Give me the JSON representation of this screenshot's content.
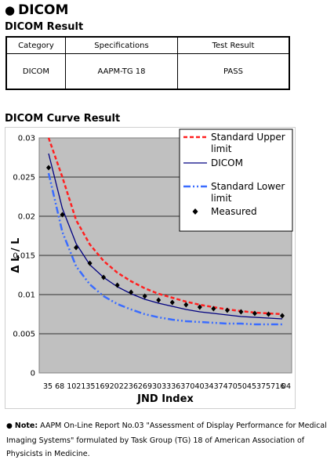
{
  "section": {
    "title": "DICOM"
  },
  "result": {
    "heading": "DICOM Result",
    "headers": [
      "Category",
      "Specifications",
      "Test Result"
    ],
    "rows": [
      [
        "DICOM",
        "AAPM-TG 18",
        "PASS"
      ]
    ]
  },
  "curve": {
    "heading": "DICOM Curve Result"
  },
  "chart_data": {
    "type": "line",
    "xlabel": "JND Index",
    "ylabel": "Δ L / L",
    "ylim": [
      0,
      0.03
    ],
    "y_ticks": [
      "0",
      "0.005",
      "0.01",
      "0.015",
      "0.02",
      "0.025",
      "0.03"
    ],
    "x_tick_text": "35  68 1021351692022362693033363704034374705045375716",
    "x_tick_last": "04",
    "grid": true,
    "legend_position": "top-right",
    "legend": [
      "Standard Upper limit",
      "DICOM",
      "Standard Lower limit",
      "Measured"
    ],
    "colors": {
      "upper": "#ff2020",
      "dicom": "#000080",
      "lower": "#3a6cff",
      "measured": "#000000",
      "plot_bg": "#c0c0c0"
    },
    "x": [
      35,
      68,
      102,
      135,
      169,
      202,
      236,
      269,
      303,
      336,
      370,
      403,
      437,
      470,
      504,
      537,
      571,
      604
    ],
    "series": [
      {
        "name": "Standard Upper limit",
        "values": [
          0.0315,
          0.025,
          0.0195,
          0.0164,
          0.0143,
          0.0128,
          0.0117,
          0.0108,
          0.0101,
          0.0096,
          0.0091,
          0.0087,
          0.0084,
          0.0081,
          0.0079,
          0.0077,
          0.0076,
          0.0075
        ]
      },
      {
        "name": "DICOM",
        "values": [
          0.028,
          0.021,
          0.0165,
          0.0138,
          0.0122,
          0.011,
          0.0101,
          0.0094,
          0.0089,
          0.0085,
          0.0081,
          0.0078,
          0.0076,
          0.0074,
          0.0072,
          0.0071,
          0.007,
          0.0069
        ]
      },
      {
        "name": "Standard Lower limit",
        "values": [
          0.0255,
          0.018,
          0.0136,
          0.0113,
          0.0098,
          0.0088,
          0.0081,
          0.0075,
          0.0071,
          0.0068,
          0.0066,
          0.0065,
          0.0064,
          0.0063,
          0.0063,
          0.0062,
          0.0062,
          0.0062
        ]
      },
      {
        "name": "Measured",
        "values": [
          0.0262,
          0.0202,
          0.016,
          0.014,
          0.0122,
          0.0112,
          0.0103,
          0.0098,
          0.0093,
          0.009,
          0.0087,
          0.0084,
          0.0082,
          0.008,
          0.0078,
          0.0076,
          0.0075,
          0.0073
        ]
      }
    ]
  },
  "note": {
    "label": "Note:",
    "text": " AAPM On-Line Report No.03 \"Assessment of Display Performance for Medical Imaging Systems\" formulated by Task Group (TG) 18 of American Association of Physicists in Medicine."
  }
}
